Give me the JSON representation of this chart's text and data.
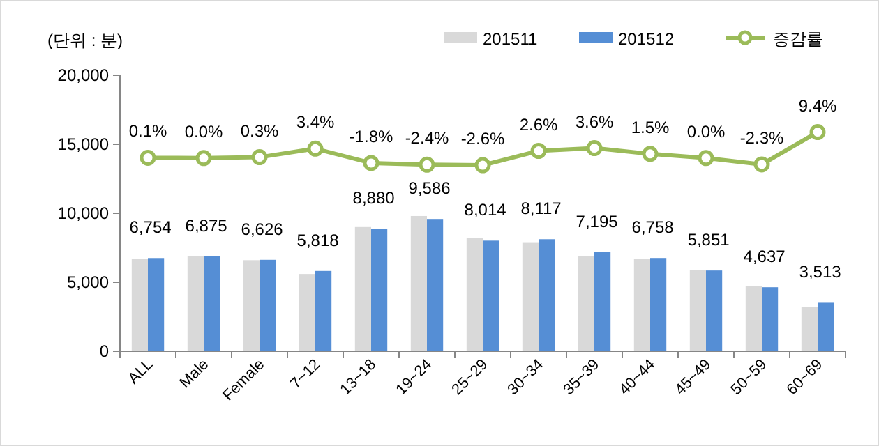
{
  "chart_data": {
    "type": "bar",
    "categories": [
      "ALL",
      "Male",
      "Female",
      "7~12",
      "13~18",
      "19~24",
      "25~29",
      "30~34",
      "35~39",
      "40~44",
      "45~49",
      "50~59",
      "60~69"
    ],
    "series": [
      {
        "name": "201511",
        "color": "#d9d9d9",
        "values": [
          6700,
          6900,
          6600,
          5600,
          9000,
          9800,
          8200,
          7900,
          6900,
          6700,
          5900,
          4700,
          3200
        ]
      },
      {
        "name": "201512",
        "color": "#558ed5",
        "values": [
          6754,
          6875,
          6626,
          5818,
          8880,
          9586,
          8014,
          8117,
          7195,
          6758,
          5851,
          4637,
          3513
        ],
        "value_labels": [
          "6,754",
          "6,875",
          "6,626",
          "5,818",
          "8,880",
          "9,586",
          "8,014",
          "8,117",
          "7,195",
          "6,758",
          "5,851",
          "4,637",
          "3,513"
        ]
      },
      {
        "name": "증감률",
        "type": "line",
        "axis": "y2",
        "color": "#9bbb59",
        "marker": "circle",
        "values": [
          0.1,
          0.0,
          0.3,
          3.4,
          -1.8,
          -2.4,
          -2.6,
          2.6,
          3.6,
          1.5,
          0.0,
          -2.3,
          9.4
        ],
        "value_labels": [
          "0.1%",
          "0.0%",
          "0.3%",
          "3.4%",
          "-1.8%",
          "-2.4%",
          "-2.6%",
          "2.6%",
          "3.6%",
          "1.5%",
          "0.0%",
          "-2.3%",
          "9.4%"
        ]
      }
    ],
    "ylim": [
      0,
      20000
    ],
    "yticks": [
      0,
      {
        "value": 5000,
        "label": "5,000"
      },
      {
        "value": 10000,
        "label": "10,000"
      },
      {
        "value": 15000,
        "label": "15,000"
      },
      {
        "value": 20000,
        "label": "20,000"
      }
    ],
    "y2lim": [
      -70,
      30
    ],
    "grid": false,
    "legend": "top right",
    "annotations": [
      "(단위 : 분)"
    ]
  }
}
